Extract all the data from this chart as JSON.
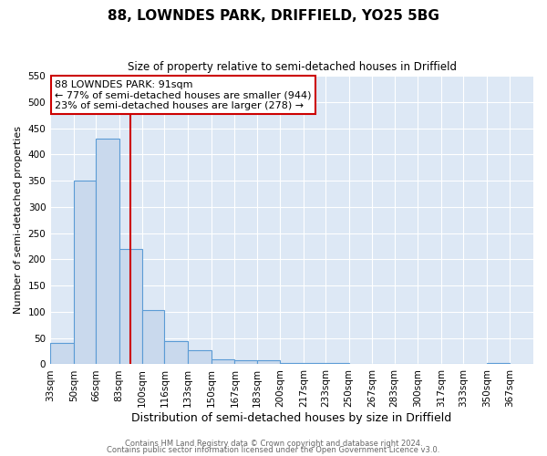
{
  "title": "88, LOWNDES PARK, DRIFFIELD, YO25 5BG",
  "subtitle": "Size of property relative to semi-detached houses in Driffield",
  "xlabel": "Distribution of semi-detached houses by size in Driffield",
  "ylabel": "Number of semi-detached properties",
  "bar_labels": [
    "33sqm",
    "50sqm",
    "66sqm",
    "83sqm",
    "100sqm",
    "116sqm",
    "133sqm",
    "150sqm",
    "167sqm",
    "183sqm",
    "200sqm",
    "217sqm",
    "233sqm",
    "250sqm",
    "267sqm",
    "283sqm",
    "300sqm",
    "317sqm",
    "333sqm",
    "350sqm",
    "367sqm"
  ],
  "bar_values": [
    40,
    350,
    430,
    220,
    103,
    45,
    27,
    10,
    8,
    8,
    3,
    3,
    2,
    1,
    1,
    0,
    0,
    0,
    0,
    3,
    1
  ],
  "bar_color": "#c9d9ed",
  "bar_edge_color": "#5b9bd5",
  "property_line_x": 91,
  "property_line_color": "#cc0000",
  "annotation_text": "88 LOWNDES PARK: 91sqm\n← 77% of semi-detached houses are smaller (944)\n23% of semi-detached houses are larger (278) →",
  "annotation_box_facecolor": "#ffffff",
  "annotation_box_edgecolor": "#cc0000",
  "ylim": [
    0,
    550
  ],
  "yticks": [
    0,
    50,
    100,
    150,
    200,
    250,
    300,
    350,
    400,
    450,
    500,
    550
  ],
  "footer_line1": "Contains HM Land Registry data © Crown copyright and database right 2024.",
  "footer_line2": "Contains public sector information licensed under the Open Government Licence v3.0.",
  "fig_bg_color": "#ffffff",
  "plot_bg_color": "#dde8f5"
}
